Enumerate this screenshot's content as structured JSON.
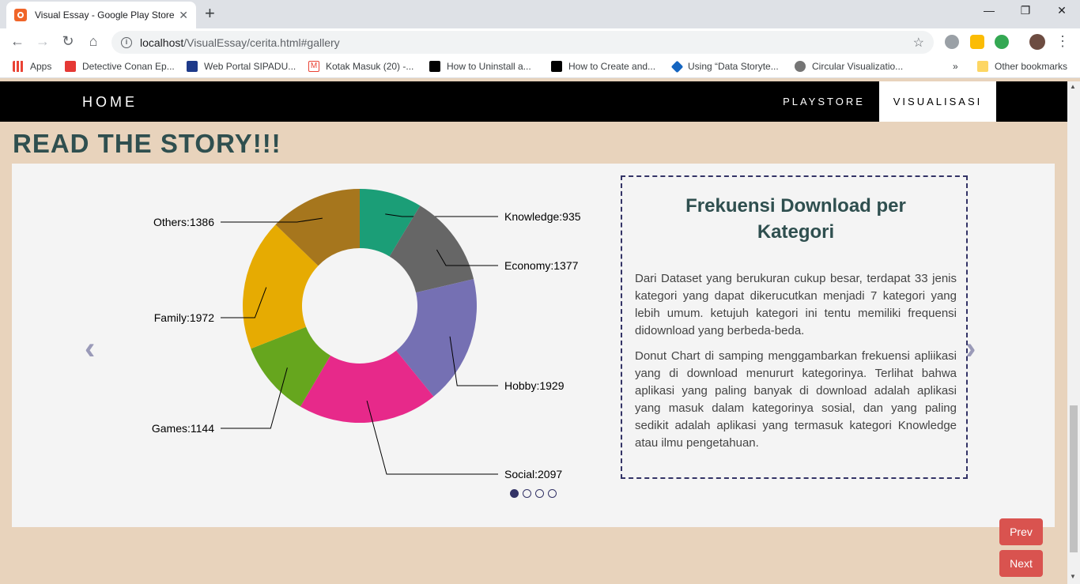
{
  "browser": {
    "tab_title": "Visual Essay - Google Play Store",
    "url_host": "localhost",
    "url_path": "/VisualEssay/cerita.html#gallery",
    "bookmarks": [
      "Apps",
      "Detective Conan Ep...",
      "Web Portal SIPADU...",
      "Kotak Masuk (20) -...",
      "How to Uninstall a...",
      "How to Create and...",
      "Using “Data Storyte...",
      "Circular Visualizatio...",
      "Other bookmarks"
    ],
    "bookmarks_more": "»"
  },
  "navbar": {
    "home": "HOME",
    "playstore": "PLAYSTORE",
    "visualisasi": "VISUALISASI"
  },
  "heading": "READ THE STORY!!!",
  "textbox": {
    "title": "Frekuensi Download per Kategori",
    "paragraph1": "Dari Dataset yang berukuran cukup besar, terdapat 33 jenis kategori yang dapat dikerucutkan menjadi 7 kategori yang lebih umum. ketujuh kategori ini tentu memiliki frequensi didownload yang berbeda-beda.",
    "paragraph2": "Donut Chart di samping menggambarkan frekuensi apliikasi yang di download menururt kategorinya. Terlihat bahwa aplikasi yang paling banyak di download adalah aplikasi yang masuk dalam kategorinya sosial, dan yang paling sedikit adalah aplikasi yang termasuk kategori Knowledge atau ilmu pengetahuan."
  },
  "carousel": {
    "prev_arrow": "‹",
    "next_arrow": "›",
    "dots": 4,
    "active_dot": 0
  },
  "buttons": {
    "prev": "Prev",
    "next": "Next"
  },
  "chart_data": {
    "type": "pie",
    "donut": true,
    "categories": [
      "Knowledge",
      "Economy",
      "Hobby",
      "Social",
      "Games",
      "Family",
      "Others"
    ],
    "values": [
      935,
      1377,
      1929,
      2097,
      1144,
      1972,
      1386
    ],
    "labels": [
      "Knowledge:935",
      "Economy:1377",
      "Hobby:1929",
      "Social:2097",
      "Games:1144",
      "Family:1972",
      "Others:1386"
    ],
    "colors": [
      "#1b9e77",
      "#666666",
      "#7570b3",
      "#e7298a",
      "#66a61e",
      "#e6ab02",
      "#a6761d"
    ]
  }
}
